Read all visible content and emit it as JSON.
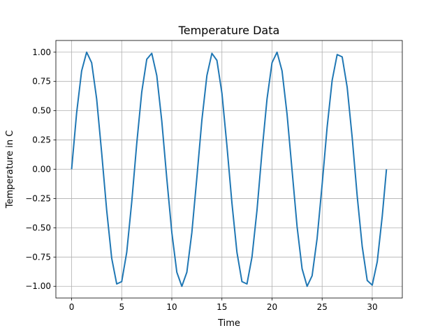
{
  "chart_data": {
    "type": "line",
    "title": "Temperature Data",
    "xlabel": "Time",
    "ylabel": "Temperature in C",
    "xlim": [
      -1.57,
      33.0
    ],
    "ylim": [
      -1.1,
      1.1
    ],
    "grid": true,
    "xticks": [
      0,
      5,
      10,
      15,
      20,
      25,
      30
    ],
    "xtick_labels": [
      "0",
      "5",
      "10",
      "15",
      "20",
      "25",
      "30"
    ],
    "yticks": [
      -1.0,
      -0.75,
      -0.5,
      -0.25,
      0.0,
      0.25,
      0.5,
      0.75,
      1.0
    ],
    "ytick_labels": [
      "−1.00",
      "−0.75",
      "−0.50",
      "−0.25",
      "0.00",
      "0.25",
      "0.50",
      "0.75",
      "1.00"
    ],
    "series": [
      {
        "color": "#1f77b4",
        "x": [
          0.0,
          0.5,
          1.0,
          1.5,
          2.0,
          2.5,
          3.0,
          3.5,
          4.0,
          4.5,
          5.0,
          5.5,
          6.0,
          6.5,
          7.0,
          7.5,
          8.0,
          8.5,
          9.0,
          9.5,
          10.0,
          10.5,
          11.0,
          11.5,
          12.0,
          12.5,
          13.0,
          13.5,
          14.0,
          14.5,
          15.0,
          15.5,
          16.0,
          16.5,
          17.0,
          17.5,
          18.0,
          18.5,
          19.0,
          19.5,
          20.0,
          20.5,
          21.0,
          21.5,
          22.0,
          22.5,
          23.0,
          23.5,
          24.0,
          24.5,
          25.0,
          25.5,
          26.0,
          26.5,
          27.0,
          27.5,
          28.0,
          28.5,
          29.0,
          29.5,
          30.0,
          30.5,
          31.0,
          31.42
        ],
        "y": [
          0.0,
          0.48,
          0.84,
          1.0,
          0.91,
          0.6,
          0.14,
          -0.35,
          -0.76,
          -0.98,
          -0.96,
          -0.71,
          -0.28,
          0.22,
          0.66,
          0.94,
          0.99,
          0.8,
          0.41,
          -0.08,
          -0.54,
          -0.88,
          -1.0,
          -0.88,
          -0.54,
          -0.07,
          0.42,
          0.8,
          0.99,
          0.93,
          0.65,
          0.2,
          -0.29,
          -0.71,
          -0.96,
          -0.98,
          -0.75,
          -0.35,
          0.15,
          0.6,
          0.91,
          1.0,
          0.84,
          0.47,
          -0.01,
          -0.49,
          -0.85,
          -1.0,
          -0.91,
          -0.59,
          -0.13,
          0.36,
          0.76,
          0.98,
          0.96,
          0.7,
          0.27,
          -0.23,
          -0.66,
          -0.95,
          -0.99,
          -0.79,
          -0.4,
          0.0
        ]
      }
    ]
  }
}
